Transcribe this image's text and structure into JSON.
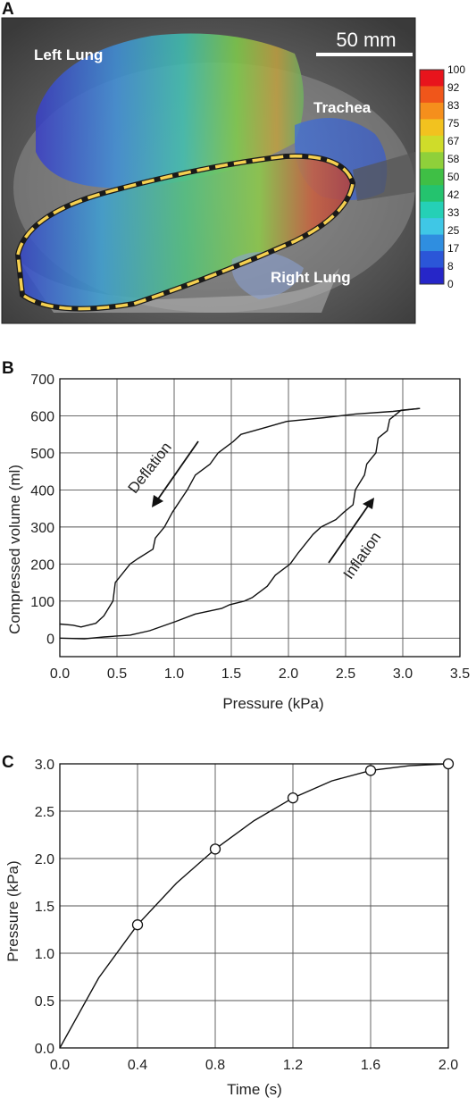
{
  "panels": {
    "a": {
      "letter": "A",
      "scale_bar_label": "50 mm",
      "labels": {
        "left_lung": "Left Lung",
        "trachea": "Trachea",
        "right_lung": "Right Lung"
      },
      "colorbar": {
        "ticks": [
          "100",
          "92",
          "83",
          "75",
          "67",
          "58",
          "50",
          "42",
          "33",
          "25",
          "17",
          "8",
          "0"
        ],
        "colors": [
          "#e8141c",
          "#f0561a",
          "#f58f1c",
          "#f2c21f",
          "#cfdc2a",
          "#8fd03a",
          "#3fbf45",
          "#24c36e",
          "#25d0b6",
          "#3fc7e6",
          "#2f8ee0",
          "#2b56d8",
          "#2626c8"
        ]
      },
      "outline_color": "#f5d050"
    },
    "b": {
      "letter": "B"
    },
    "c": {
      "letter": "C"
    }
  },
  "chart_data": [
    {
      "type": "line",
      "panel": "B",
      "title": "",
      "xlabel": "Pressure (kPa)",
      "ylabel": "Compressed volume (ml)",
      "xlim": [
        0.0,
        3.5
      ],
      "ylim": [
        -50,
        700
      ],
      "xticks": [
        0.0,
        0.5,
        1.0,
        1.5,
        2.0,
        2.5,
        3.0,
        3.5
      ],
      "xtick_labels": [
        "0.0",
        "0.5",
        "1.0",
        "1.5",
        "2.0",
        "2.5",
        "3.0",
        "3.5"
      ],
      "yticks": [
        0,
        100,
        200,
        300,
        400,
        500,
        600,
        700
      ],
      "ytick_labels": [
        "0",
        "100",
        "200",
        "300",
        "400",
        "500",
        "600",
        "700"
      ],
      "grid": true,
      "annotations": [
        {
          "text": "Deflation",
          "direction": "decreasing"
        },
        {
          "text": "Inflation",
          "direction": "increasing"
        }
      ],
      "series": [
        {
          "points": [
            [
              0.0,
              0
            ],
            [
              0.2,
              -2
            ],
            [
              0.4,
              3
            ],
            [
              0.6,
              8
            ],
            [
              0.8,
              20
            ],
            [
              1.0,
              45
            ],
            [
              1.2,
              65
            ],
            [
              1.4,
              80
            ],
            [
              1.5,
              90
            ],
            [
              1.6,
              100
            ],
            [
              1.7,
              110
            ],
            [
              1.8,
              140
            ],
            [
              1.9,
              170
            ],
            [
              2.0,
              200
            ],
            [
              2.1,
              230
            ],
            [
              2.2,
              280
            ],
            [
              2.3,
              300
            ],
            [
              2.4,
              320
            ],
            [
              2.5,
              340
            ],
            [
              2.55,
              360
            ],
            [
              2.6,
              400
            ],
            [
              2.65,
              440
            ],
            [
              2.7,
              470
            ],
            [
              2.75,
              500
            ],
            [
              2.8,
              540
            ],
            [
              2.85,
              560
            ],
            [
              2.9,
              590
            ],
            [
              2.95,
              610
            ],
            [
              3.0,
              615
            ],
            [
              3.15,
              620
            ]
          ]
        },
        {
          "points": [
            [
              3.15,
              620
            ],
            [
              2.9,
              612
            ],
            [
              2.6,
              605
            ],
            [
              2.3,
              595
            ],
            [
              2.0,
              585
            ],
            [
              1.8,
              570
            ],
            [
              1.6,
              550
            ],
            [
              1.5,
              530
            ],
            [
              1.4,
              500
            ],
            [
              1.3,
              470
            ],
            [
              1.2,
              440
            ],
            [
              1.1,
              400
            ],
            [
              1.0,
              340
            ],
            [
              0.9,
              300
            ],
            [
              0.85,
              270
            ],
            [
              0.8,
              240
            ],
            [
              0.7,
              215
            ],
            [
              0.6,
              200
            ],
            [
              0.5,
              150
            ],
            [
              0.45,
              100
            ],
            [
              0.4,
              60
            ],
            [
              0.3,
              40
            ],
            [
              0.2,
              30
            ],
            [
              0.1,
              35
            ],
            [
              0.0,
              38
            ]
          ]
        }
      ]
    },
    {
      "type": "line",
      "panel": "C",
      "title": "",
      "xlabel": "Time (s)",
      "ylabel": "Pressure (kPa)",
      "xlim": [
        0.0,
        2.0
      ],
      "ylim": [
        0.0,
        3.0
      ],
      "xticks": [
        0.0,
        0.4,
        0.8,
        1.2,
        1.6,
        2.0
      ],
      "xtick_labels": [
        "0.0",
        "0.4",
        "0.8",
        "1.2",
        "1.6",
        "2.0"
      ],
      "yticks": [
        0.0,
        0.5,
        1.0,
        1.5,
        2.0,
        2.5,
        3.0
      ],
      "ytick_labels": [
        "0.0",
        "0.5",
        "1.0",
        "1.5",
        "2.0",
        "2.5",
        "3.0"
      ],
      "grid": true,
      "series": [
        {
          "x": [
            0.0,
            0.2,
            0.4,
            0.6,
            0.8,
            1.0,
            1.2,
            1.4,
            1.6,
            1.8,
            2.0
          ],
          "y": [
            0.0,
            0.74,
            1.3,
            1.74,
            2.1,
            2.4,
            2.64,
            2.82,
            2.93,
            2.98,
            3.0
          ]
        }
      ],
      "markers": {
        "x": [
          0.4,
          0.8,
          1.2,
          1.6,
          2.0
        ],
        "y": [
          1.3,
          2.1,
          2.64,
          2.93,
          3.0
        ],
        "shape": "circle"
      }
    }
  ]
}
